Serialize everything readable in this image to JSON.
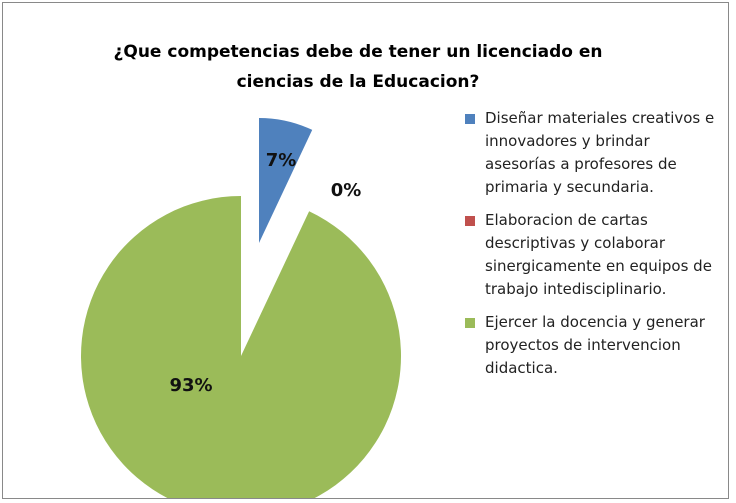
{
  "chart_data": {
    "type": "pie",
    "title": "¿Que competencias debe de tener un licenciado en ciencias de la Educacion?",
    "categories": [
      "Diseñar materiales creativos e innovadores y brindar asesorías a profesores de primaria y secundaria.",
      "Elaboracion de cartas descriptivas y colaborar sinergicamente en equipos de trabajo intedisciplinario.",
      "Ejercer la docencia y generar proyectos de intervencion didactica."
    ],
    "values": [
      7,
      0,
      93
    ],
    "value_labels": [
      "7%",
      "0%",
      "93%"
    ],
    "colors": [
      "#4f81bd",
      "#c0504d",
      "#9bbb59"
    ]
  }
}
